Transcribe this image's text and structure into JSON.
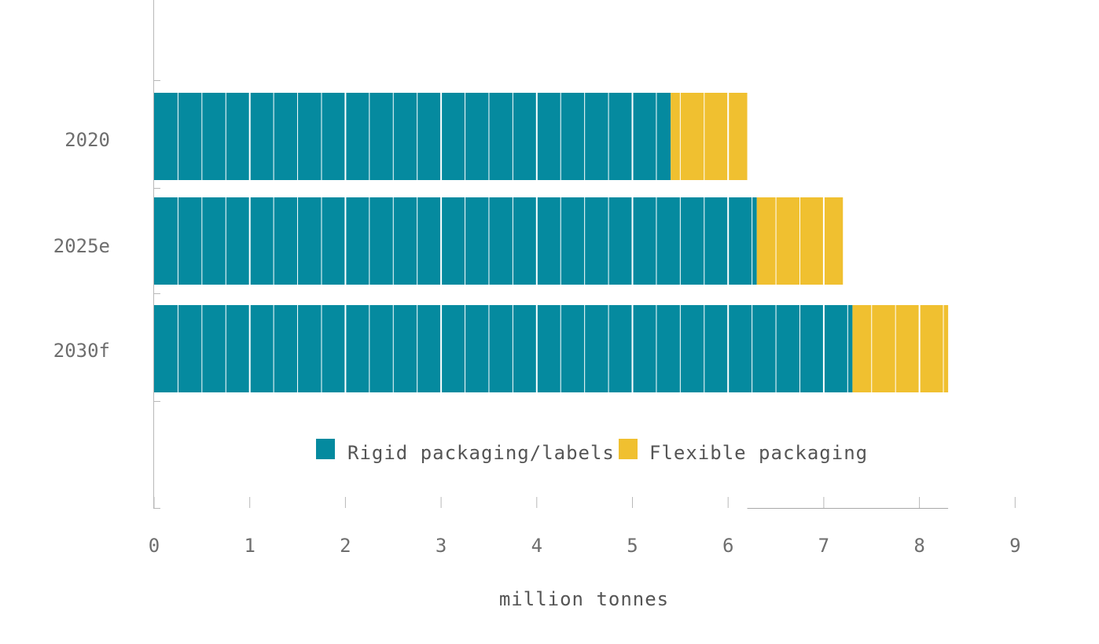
{
  "chart_data": {
    "type": "bar",
    "orientation": "horizontal",
    "stacked": true,
    "categories": [
      "2020",
      "2025e",
      "2030f"
    ],
    "series": [
      {
        "name": "Rigid packaging/labels",
        "color": "#058a9f",
        "values": [
          5.4,
          6.3,
          7.3
        ]
      },
      {
        "name": "Flexible packaging",
        "color": "#f0c030",
        "values": [
          0.8,
          0.9,
          1.0
        ]
      }
    ],
    "xlabel": "million tonnes",
    "xlim": [
      0,
      9
    ],
    "xticks": [
      "0",
      "1",
      "2",
      "3",
      "4",
      "5",
      "6",
      "7",
      "8",
      "9"
    ],
    "legend_position": "bottom-center",
    "grid": false
  }
}
